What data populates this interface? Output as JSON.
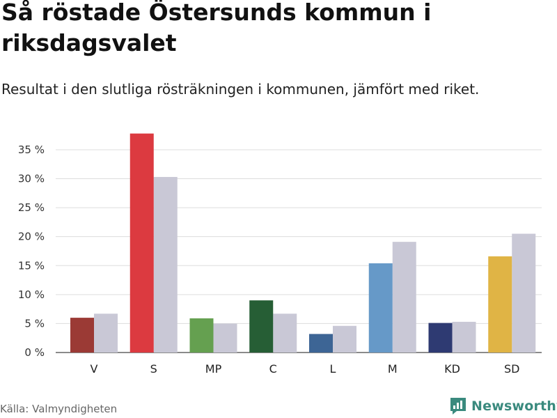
{
  "header": {
    "title": "Så röstade Östersunds kommun i riksdagsvalet",
    "subtitle": "Resultat i den slutliga rösträkningen i kommunen, jämfört med riket."
  },
  "footer": {
    "source": "Källa: Valmyndigheten",
    "brand": "Newsworthy",
    "brand_color": "#3a8a7e"
  },
  "chart_data": {
    "type": "bar",
    "categories": [
      "V",
      "S",
      "MP",
      "C",
      "L",
      "M",
      "KD",
      "SD"
    ],
    "series": [
      {
        "name": "Östersunds kommun",
        "values": [
          6.0,
          37.8,
          5.9,
          9.0,
          3.2,
          15.4,
          5.1,
          16.6
        ],
        "colors": [
          "#9b3a35",
          "#dc3a40",
          "#65a050",
          "#265e35",
          "#3d6595",
          "#6699c8",
          "#2e3a72",
          "#e0b445"
        ]
      },
      {
        "name": "Riket",
        "values": [
          6.7,
          30.3,
          5.0,
          6.7,
          4.6,
          19.1,
          5.3,
          20.5
        ],
        "color": "#c9c8d6"
      }
    ],
    "title": "Så röstade Östersunds kommun i riksdagsvalet",
    "xlabel": "",
    "ylabel": "",
    "ylim": [
      0,
      38
    ],
    "yticks": [
      0,
      5,
      10,
      15,
      20,
      25,
      30,
      35
    ],
    "ytick_labels": [
      "0 %",
      "5 %",
      "10 %",
      "15 %",
      "20 %",
      "25 %",
      "30 %",
      "35 %"
    ],
    "grid": true
  }
}
